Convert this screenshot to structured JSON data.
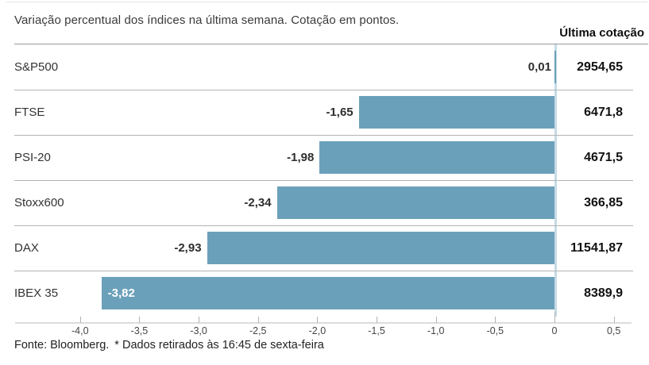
{
  "title": "Variação percentual dos índices na última semana. Cotação em pontos.",
  "quote_column_header": "Última cotação",
  "chart_data": {
    "type": "bar",
    "orientation": "horizontal",
    "title": "Variação percentual dos índices na última semana. Cotação em pontos.",
    "categories": [
      "S&P500",
      "FTSE",
      "PSI-20",
      "Stoxx600",
      "DAX",
      "IBEX 35"
    ],
    "values": [
      0.01,
      -1.65,
      -1.98,
      -2.34,
      -2.93,
      -3.82
    ],
    "value_labels": [
      "0,01",
      "-1,65",
      "-1,98",
      "-2,34",
      "-2,93",
      "-3,82"
    ],
    "last_quotes": [
      "2954,65",
      "6471,8",
      "4671,5",
      "366,85",
      "11541,87",
      "8389,9"
    ],
    "quote_column_header": "Última cotação",
    "x_ticks": [
      -4.0,
      -3.5,
      -3.0,
      -2.5,
      -2.0,
      -1.5,
      -1.0,
      -0.5,
      0,
      0.5
    ],
    "x_tick_labels": [
      "-4,0",
      "-3,5",
      "-3,0",
      "-2,5",
      "-2,0",
      "-1,5",
      "-1,0",
      "-0,5",
      "0",
      "0,5"
    ],
    "xlim": [
      -4.55,
      0.65
    ],
    "legend": "none",
    "grid": "zero-line-only",
    "bar_color": "#6ba0ba",
    "zero_line_color": "#c5dbe6",
    "value_label_inside_bar": [
      "IBEX 35"
    ]
  },
  "footer": {
    "source": "Fonte: Bloomberg.",
    "note": "* Dados retirados às 16:45 de sexta-feira"
  }
}
